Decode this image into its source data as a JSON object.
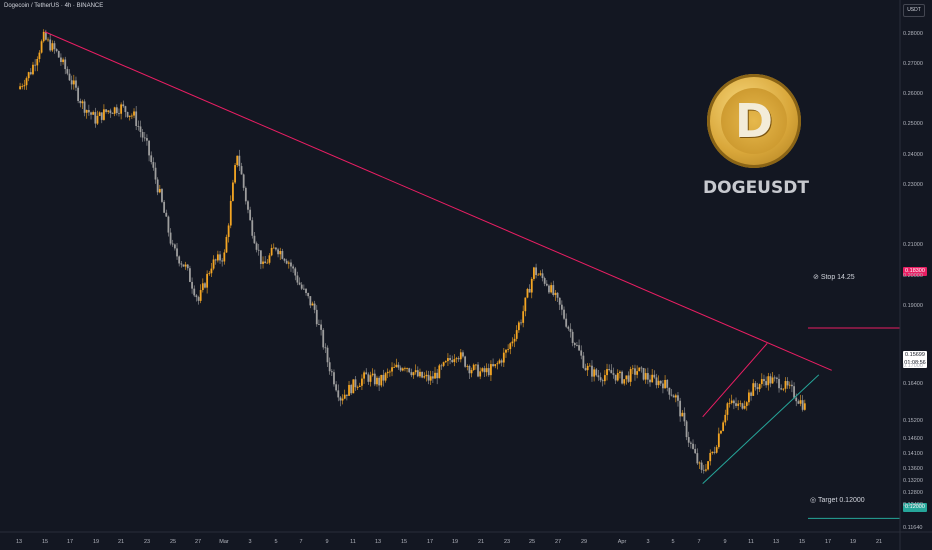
{
  "header": {
    "symbol_line": "Dogecoin / TetherUS · 4h · BINANCE",
    "currency_button": "USDT"
  },
  "brand": {
    "title": "DOGEUSDT",
    "logo_letter": "D"
  },
  "annotations": {
    "stop_label": "Stop 14.25",
    "target_label": "Target 0.12000"
  },
  "price_tags": {
    "stop": "0.18300",
    "target": "0.12000",
    "last_price": "0.15699",
    "countdown": "01:08:56"
  },
  "colors": {
    "background": "#131722",
    "candle_up": "#f5a623",
    "candle_down": "#9e9e9e",
    "trendline": "#e91e63",
    "support_line": "#26a69a",
    "stop_line": "#e91e63",
    "target_line": "#26a69a"
  },
  "chart_data": {
    "type": "candlestick",
    "ylim": [
      0.1155,
      0.2915
    ],
    "y_ticks": [
      0.28,
      0.27,
      0.26,
      0.25,
      0.24,
      0.23,
      0.21,
      0.2,
      0.19,
      0.17,
      0.164,
      0.152,
      0.146,
      0.141,
      0.136,
      0.132,
      0.128,
      0.124,
      0.1164
    ],
    "y_tick_labels": [
      "0.28000",
      "0.27000",
      "0.26000",
      "0.25000",
      "0.24000",
      "0.23000",
      "0.21000",
      "0.20000",
      "0.19000",
      "0.17000",
      "0.16400",
      "0.15200",
      "0.14600",
      "0.14100",
      "0.13600",
      "0.13200",
      "0.12800",
      "0.12400",
      "0.11640"
    ],
    "x_tick_labels": [
      "13",
      "15",
      "17",
      "19",
      "21",
      "23",
      "25",
      "27",
      "Mar",
      "3",
      "5",
      "7",
      "9",
      "11",
      "13",
      "15",
      "17",
      "19",
      "21",
      "23",
      "25",
      "27",
      "29",
      "Apr",
      "3",
      "5",
      "7",
      "9",
      "11",
      "13",
      "15",
      "17",
      "19",
      "21"
    ],
    "close_path": [
      [
        "Feb 13",
        0.262
      ],
      [
        "Feb 14",
        0.268
      ],
      [
        "Feb 15",
        0.279
      ],
      [
        "Feb 16",
        0.274
      ],
      [
        "Feb 17",
        0.266
      ],
      [
        "Feb 18",
        0.257
      ],
      [
        "Feb 19",
        0.252
      ],
      [
        "Feb 20",
        0.255
      ],
      [
        "Feb 21",
        0.256
      ],
      [
        "Feb 22",
        0.253
      ],
      [
        "Feb 23",
        0.243
      ],
      [
        "Feb 24",
        0.227
      ],
      [
        "Feb 25",
        0.209
      ],
      [
        "Feb 26",
        0.203
      ],
      [
        "Feb 27",
        0.192
      ],
      [
        "Feb 28",
        0.204
      ],
      [
        "Mar 1",
        0.207
      ],
      [
        "Mar 2",
        0.241
      ],
      [
        "Mar 3",
        0.218
      ],
      [
        "Mar 4",
        0.203
      ],
      [
        "Mar 5",
        0.21
      ],
      [
        "Mar 6",
        0.205
      ],
      [
        "Mar 7",
        0.196
      ],
      [
        "Mar 8",
        0.189
      ],
      [
        "Mar 9",
        0.172
      ],
      [
        "Mar 10",
        0.16
      ],
      [
        "Mar 11",
        0.164
      ],
      [
        "Mar 12",
        0.167
      ],
      [
        "Mar 13",
        0.165
      ],
      [
        "Mar 14",
        0.169
      ],
      [
        "Mar 15",
        0.171
      ],
      [
        "Mar 16",
        0.167
      ],
      [
        "Mar 17",
        0.166
      ],
      [
        "Mar 18",
        0.17
      ],
      [
        "Mar 19",
        0.175
      ],
      [
        "Mar 20",
        0.17
      ],
      [
        "Mar 21",
        0.168
      ],
      [
        "Mar 22",
        0.17
      ],
      [
        "Mar 23",
        0.176
      ],
      [
        "Mar 24",
        0.186
      ],
      [
        "Mar 25",
        0.202
      ],
      [
        "Mar 26",
        0.198
      ],
      [
        "Mar 27",
        0.19
      ],
      [
        "Mar 28",
        0.18
      ],
      [
        "Mar 29",
        0.17
      ],
      [
        "Mar 30",
        0.167
      ],
      [
        "Mar 31",
        0.168
      ],
      [
        "Apr 1",
        0.166
      ],
      [
        "Apr 2",
        0.169
      ],
      [
        "Apr 3",
        0.166
      ],
      [
        "Apr 4",
        0.165
      ],
      [
        "Apr 5",
        0.16
      ],
      [
        "Apr 6",
        0.146
      ],
      [
        "Apr 7",
        0.135
      ],
      [
        "Apr 8",
        0.143
      ],
      [
        "Apr 9",
        0.158
      ],
      [
        "Apr 10",
        0.157
      ],
      [
        "Apr 11",
        0.163
      ],
      [
        "Apr 12",
        0.166
      ],
      [
        "Apr 13",
        0.165
      ],
      [
        "Apr 14",
        0.162
      ],
      [
        "Apr 15",
        0.157
      ]
    ],
    "trendlines": [
      {
        "role": "descending resistance",
        "from": [
          "Feb 15",
          0.281
        ],
        "to": [
          "Apr 17",
          0.169
        ]
      },
      {
        "role": "rising wedge upper",
        "from": [
          "Apr 7",
          0.1536
        ],
        "to": [
          "Apr 12",
          0.1779
        ]
      },
      {
        "role": "rising wedge support",
        "from": [
          "Apr 7",
          0.1315
        ],
        "to": [
          "Apr 16",
          0.1675
        ]
      }
    ],
    "levels": [
      {
        "name": "Stop",
        "value": 0.183
      },
      {
        "name": "Target",
        "value": 0.12
      }
    ]
  }
}
